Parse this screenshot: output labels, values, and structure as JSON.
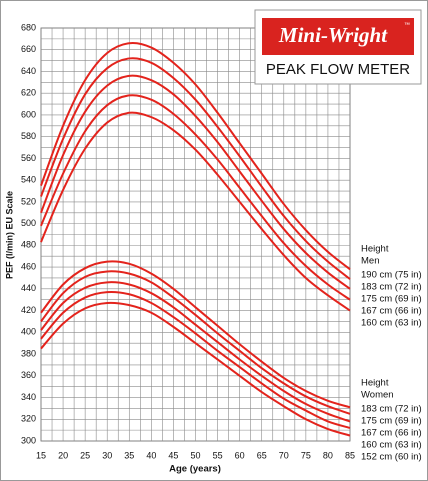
{
  "chart_data": {
    "type": "line",
    "brand": {
      "name": "Mini-Wright",
      "mark": "™",
      "product": "PEAK FLOW METER"
    },
    "x_label": "Age (years)",
    "y_label": "PEF (l/min) EU Scale",
    "x": [
      15,
      20,
      25,
      30,
      35,
      40,
      45,
      50,
      55,
      60,
      65,
      70,
      75,
      80,
      85
    ],
    "xlim": [
      15,
      85
    ],
    "xticks": [
      15,
      20,
      25,
      30,
      35,
      40,
      45,
      50,
      55,
      60,
      65,
      70,
      75,
      80,
      85
    ],
    "xminorticks": [
      17.5,
      22.5,
      27.5,
      32.5,
      37.5,
      42.5,
      47.5,
      52.5,
      57.5,
      62.5,
      67.5,
      72.5,
      77.5,
      82.5
    ],
    "ylim": [
      300,
      680
    ],
    "yticks": [
      300,
      320,
      340,
      360,
      380,
      400,
      420,
      440,
      460,
      480,
      500,
      520,
      540,
      560,
      580,
      600,
      620,
      640,
      660,
      680
    ],
    "yminorticks": [
      310,
      330,
      350,
      370,
      390,
      410,
      430,
      450,
      470,
      490,
      510,
      530,
      550,
      570,
      590,
      610,
      630,
      650,
      670
    ],
    "grid": true,
    "legend_titles": [
      [
        "Height",
        "Men"
      ],
      [
        "Height",
        "Women"
      ]
    ],
    "series": [
      {
        "name": "190 cm (75 in)",
        "color": "#e3231c",
        "values": [
          535,
          590,
          632,
          657,
          666,
          662,
          648,
          628,
          602,
          574,
          546,
          518,
          494,
          474,
          458
        ]
      },
      {
        "name": "183 cm (72 in)",
        "color": "#e3231c",
        "values": [
          525,
          578,
          619,
          643,
          652,
          648,
          634,
          614,
          589,
          562,
          534,
          507,
          484,
          465,
          449
        ]
      },
      {
        "name": "175 cm (69 in)",
        "color": "#e3231c",
        "values": [
          510,
          563,
          603,
          627,
          636,
          632,
          619,
          599,
          575,
          548,
          521,
          495,
          473,
          455,
          440
        ]
      },
      {
        "name": "167 cm (66 in)",
        "color": "#e3231c",
        "values": [
          498,
          546,
          585,
          609,
          618,
          614,
          601,
          582,
          559,
          533,
          507,
          482,
          461,
          444,
          430
        ]
      },
      {
        "name": "160 cm (63 in)",
        "color": "#e3231c",
        "values": [
          483,
          531,
          569,
          593,
          602,
          598,
          586,
          568,
          545,
          520,
          495,
          471,
          450,
          434,
          420
        ]
      },
      {
        "name": "183 cm (72 in)",
        "color": "#e3231c",
        "values": [
          418,
          444,
          459,
          465,
          463,
          454,
          440,
          423,
          406,
          389,
          373,
          358,
          346,
          337,
          331
        ]
      },
      {
        "name": "175 cm (69 in)",
        "color": "#e3231c",
        "values": [
          410,
          436,
          451,
          456,
          454,
          446,
          432,
          416,
          399,
          383,
          367,
          353,
          341,
          332,
          325
        ]
      },
      {
        "name": "167 cm (66 in)",
        "color": "#e3231c",
        "values": [
          402,
          427,
          441,
          446,
          444,
          436,
          423,
          407,
          391,
          375,
          360,
          346,
          334,
          325,
          318
        ]
      },
      {
        "name": "160 cm (63 in)",
        "color": "#e3231c",
        "values": [
          394,
          418,
          432,
          437,
          435,
          427,
          414,
          399,
          383,
          368,
          353,
          339,
          328,
          318,
          312
        ]
      },
      {
        "name": "152 cm (60 in)",
        "color": "#e3231c",
        "values": [
          385,
          408,
          422,
          427,
          425,
          418,
          405,
          390,
          375,
          360,
          345,
          332,
          320,
          311,
          305
        ]
      }
    ]
  }
}
